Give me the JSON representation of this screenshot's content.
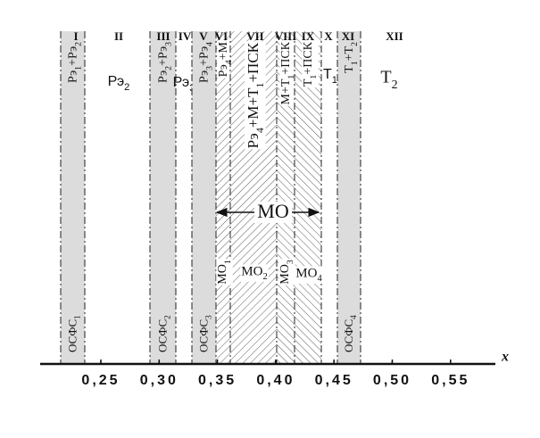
{
  "bands": [
    {
      "numeral": "I",
      "label": "Рэ1+Рэ2",
      "phase": "ОСФС1"
    },
    {
      "numeral": "II",
      "label": "Рэ2"
    },
    {
      "numeral": "III",
      "label": "Рэ2+Рэ3",
      "phase": "ОСФС2"
    },
    {
      "numeral": "IV",
      "label": "Рэ3"
    },
    {
      "numeral": "V",
      "label": "Рэ3+Рэ4",
      "phase": "ОСФС3"
    },
    {
      "numeral": "VI",
      "label": "Рэ4+М"
    },
    {
      "numeral": "VII",
      "label": "Рэ4+М+Т1+ПСК"
    },
    {
      "numeral": "VIII",
      "label": "М+Т1+ПСК"
    },
    {
      "numeral": "IX",
      "label": "Т1+ПСК"
    },
    {
      "numeral": "X",
      "label": "Т1"
    },
    {
      "numeral": "XI",
      "label": "Т1+Т2",
      "phase": "ОСФС4"
    },
    {
      "numeral": "XII",
      "label": "Т2"
    }
  ],
  "mo": {
    "label": "МО",
    "parts": [
      "МО1",
      "МО2",
      "МО3",
      "МО4"
    ]
  },
  "axis": {
    "label": "x",
    "ticks": [
      "0,25",
      "0,30",
      "0,35",
      "0,40",
      "0,45",
      "0,50",
      "0,55"
    ]
  }
}
